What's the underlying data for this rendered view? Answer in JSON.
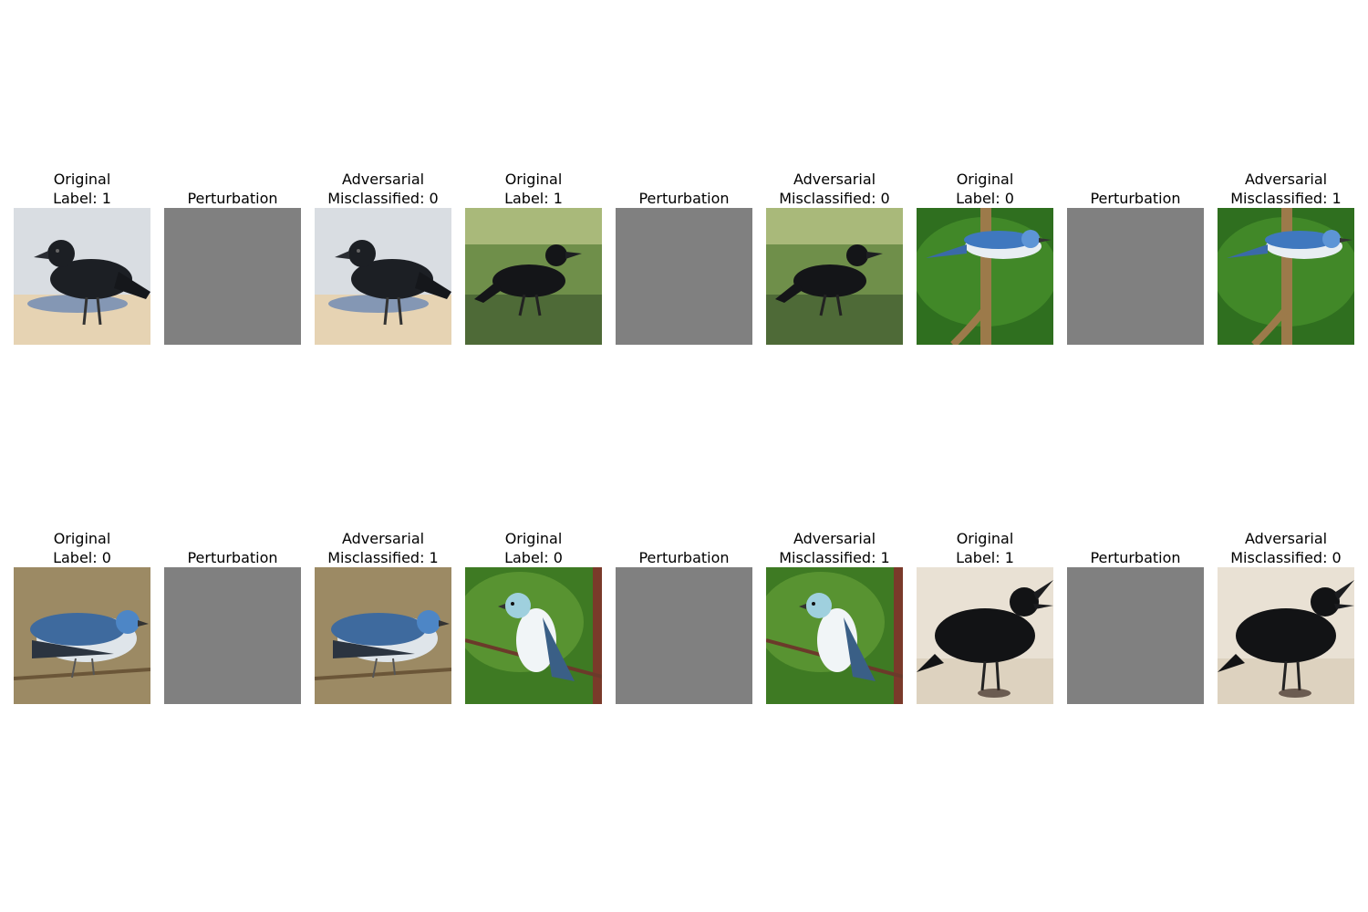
{
  "grid": {
    "rows": [
      {
        "groups": [
          {
            "original": {
              "title_line1": "Original",
              "title_line2": "Label: 1",
              "image": "crow-on-beach-icon"
            },
            "perturbation": {
              "title": "Perturbation",
              "fill": "#808080"
            },
            "adversarial": {
              "title_line1": "Adversarial",
              "title_line2": "Misclassified: 0",
              "image": "crow-on-beach-icon"
            }
          },
          {
            "original": {
              "title_line1": "Original",
              "title_line2": "Label: 1",
              "image": "crow-in-grass-icon"
            },
            "perturbation": {
              "title": "Perturbation",
              "fill": "#808080"
            },
            "adversarial": {
              "title_line1": "Adversarial",
              "title_line2": "Misclassified: 0",
              "image": "crow-in-grass-icon"
            }
          },
          {
            "original": {
              "title_line1": "Original",
              "title_line2": "Label: 0",
              "image": "blue-warbler-on-stick-icon"
            },
            "perturbation": {
              "title": "Perturbation",
              "fill": "#808080"
            },
            "adversarial": {
              "title_line1": "Adversarial",
              "title_line2": "Misclassified: 1",
              "image": "blue-warbler-on-stick-icon"
            }
          }
        ]
      },
      {
        "groups": [
          {
            "original": {
              "title_line1": "Original",
              "title_line2": "Label: 0",
              "image": "blue-warbler-on-branch-icon"
            },
            "perturbation": {
              "title": "Perturbation",
              "fill": "#808080"
            },
            "adversarial": {
              "title_line1": "Adversarial",
              "title_line2": "Misclassified: 1",
              "image": "blue-warbler-on-branch-icon"
            }
          },
          {
            "original": {
              "title_line1": "Original",
              "title_line2": "Label: 0",
              "image": "white-warbler-on-branch-icon"
            },
            "perturbation": {
              "title": "Perturbation",
              "fill": "#808080"
            },
            "adversarial": {
              "title_line1": "Adversarial",
              "title_line2": "Misclassified: 1",
              "image": "white-warbler-on-branch-icon"
            }
          },
          {
            "original": {
              "title_line1": "Original",
              "title_line2": "Label: 1",
              "image": "crow-calling-on-sand-icon"
            },
            "perturbation": {
              "title": "Perturbation",
              "fill": "#808080"
            },
            "adversarial": {
              "title_line1": "Adversarial",
              "title_line2": "Misclassified: 0",
              "image": "crow-calling-on-sand-icon"
            }
          }
        ]
      }
    ]
  }
}
